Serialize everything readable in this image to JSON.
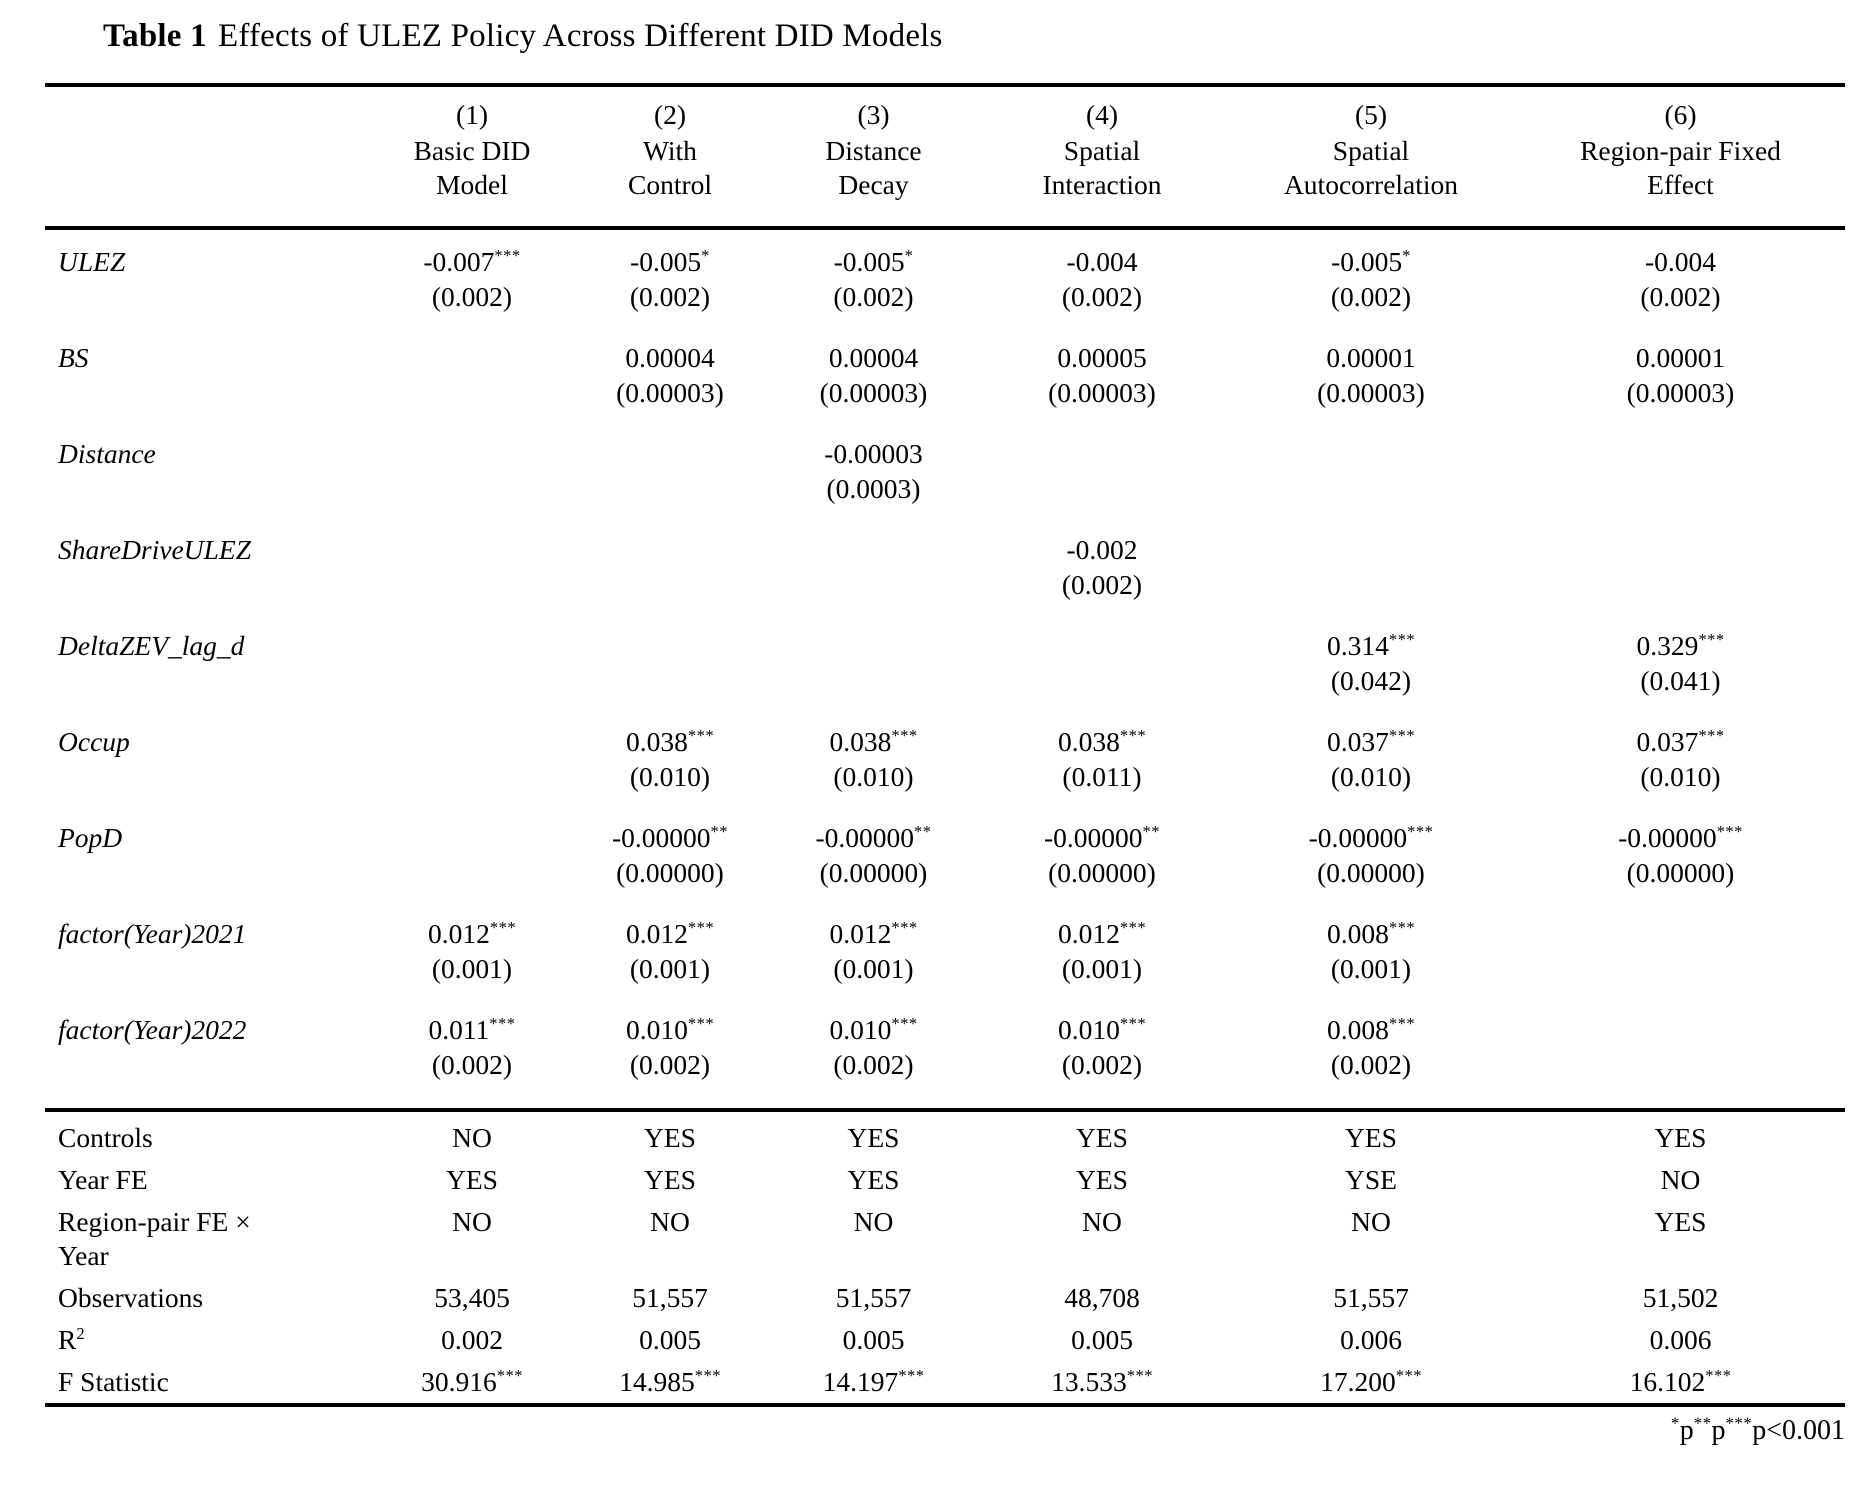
{
  "title": {
    "bold": "Table 1",
    "rest": "Effects of ULEZ Policy Across Different DID Models"
  },
  "columns": [
    {
      "num": "(1)",
      "label": "Basic DID\nModel"
    },
    {
      "num": "(2)",
      "label": "With\nControl"
    },
    {
      "num": "(3)",
      "label": "Distance\nDecay"
    },
    {
      "num": "(4)",
      "label": "Spatial\nInteraction"
    },
    {
      "num": "(5)",
      "label": "Spatial\nAutocorrelation"
    },
    {
      "num": "(6)",
      "label": "Region-pair Fixed\nEffect"
    }
  ],
  "coef_rows": [
    {
      "label": "ULEZ",
      "cells": [
        {
          "est": "-0.007",
          "stars": "***",
          "se": "(0.002)"
        },
        {
          "est": "-0.005",
          "stars": "*",
          "se": "(0.002)"
        },
        {
          "est": "-0.005",
          "stars": "*",
          "se": "(0.002)"
        },
        {
          "est": "-0.004",
          "stars": "",
          "se": "(0.002)"
        },
        {
          "est": "-0.005",
          "stars": "*",
          "se": "(0.002)"
        },
        {
          "est": "-0.004",
          "stars": "",
          "se": "(0.002)"
        }
      ]
    },
    {
      "label": "BS",
      "cells": [
        null,
        {
          "est": "0.00004",
          "stars": "",
          "se": "(0.00003)"
        },
        {
          "est": "0.00004",
          "stars": "",
          "se": "(0.00003)"
        },
        {
          "est": "0.00005",
          "stars": "",
          "se": "(0.00003)"
        },
        {
          "est": "0.00001",
          "stars": "",
          "se": "(0.00003)"
        },
        {
          "est": "0.00001",
          "stars": "",
          "se": "(0.00003)"
        }
      ]
    },
    {
      "label": "Distance",
      "cells": [
        null,
        null,
        {
          "est": "-0.00003",
          "stars": "",
          "se": "(0.0003)"
        },
        null,
        null,
        null
      ]
    },
    {
      "label": "ShareDriveULEZ",
      "cells": [
        null,
        null,
        null,
        {
          "est": "-0.002",
          "stars": "",
          "se": "(0.002)"
        },
        null,
        null
      ]
    },
    {
      "label": "DeltaZEV_lag_d",
      "cells": [
        null,
        null,
        null,
        null,
        {
          "est": "0.314",
          "stars": "***",
          "se": "(0.042)"
        },
        {
          "est": "0.329",
          "stars": "***",
          "se": "(0.041)"
        }
      ]
    },
    {
      "label": "Occup",
      "cells": [
        null,
        {
          "est": "0.038",
          "stars": "***",
          "se": "(0.010)"
        },
        {
          "est": "0.038",
          "stars": "***",
          "se": "(0.010)"
        },
        {
          "est": "0.038",
          "stars": "***",
          "se": "(0.011)"
        },
        {
          "est": "0.037",
          "stars": "***",
          "se": "(0.010)"
        },
        {
          "est": "0.037",
          "stars": "***",
          "se": "(0.010)"
        }
      ]
    },
    {
      "label": "PopD",
      "cells": [
        null,
        {
          "est": "-0.00000",
          "stars": "**",
          "se": "(0.00000)"
        },
        {
          "est": "-0.00000",
          "stars": "**",
          "se": "(0.00000)"
        },
        {
          "est": "-0.00000",
          "stars": "**",
          "se": "(0.00000)"
        },
        {
          "est": "-0.00000",
          "stars": "***",
          "se": "(0.00000)"
        },
        {
          "est": "-0.00000",
          "stars": "***",
          "se": "(0.00000)"
        }
      ]
    },
    {
      "label": "factor(Year)2021",
      "cells": [
        {
          "est": "0.012",
          "stars": "***",
          "se": "(0.001)"
        },
        {
          "est": "0.012",
          "stars": "***",
          "se": "(0.001)"
        },
        {
          "est": "0.012",
          "stars": "***",
          "se": "(0.001)"
        },
        {
          "est": "0.012",
          "stars": "***",
          "se": "(0.001)"
        },
        {
          "est": "0.008",
          "stars": "***",
          "se": "(0.001)"
        },
        null
      ]
    },
    {
      "label": "factor(Year)2022",
      "cells": [
        {
          "est": "0.011",
          "stars": "***",
          "se": "(0.002)"
        },
        {
          "est": "0.010",
          "stars": "***",
          "se": "(0.002)"
        },
        {
          "est": "0.010",
          "stars": "***",
          "se": "(0.002)"
        },
        {
          "est": "0.010",
          "stars": "***",
          "se": "(0.002)"
        },
        {
          "est": "0.008",
          "stars": "***",
          "se": "(0.002)"
        },
        null
      ]
    }
  ],
  "stat_rows": [
    {
      "label": "Controls",
      "values": [
        "NO",
        "YES",
        "YES",
        "YES",
        "YES",
        "YES"
      ]
    },
    {
      "label": "Year FE",
      "values": [
        "YES",
        "YES",
        "YES",
        "YES",
        "YSE",
        "NO"
      ]
    },
    {
      "label": "Region-pair FE ×\nYear",
      "values": [
        "NO",
        "NO",
        "NO",
        "NO",
        "NO",
        "YES"
      ]
    },
    {
      "label": "Observations",
      "values": [
        "53,405",
        "51,557",
        "51,557",
        "48,708",
        "51,557",
        "51,502"
      ]
    },
    {
      "label": "R",
      "label_sup": "2",
      "values": [
        "0.002",
        "0.005",
        "0.005",
        "0.005",
        "0.006",
        "0.006"
      ]
    },
    {
      "label": "F Statistic",
      "values": [
        {
          "text": "30.916",
          "stars": "***"
        },
        {
          "text": "14.985",
          "stars": "***"
        },
        {
          "text": "14.197",
          "stars": "***"
        },
        {
          "text": "13.533",
          "stars": "***"
        },
        {
          "text": "17.200",
          "stars": "***"
        },
        {
          "text": "16.102",
          "stars": "***"
        }
      ]
    }
  ],
  "footnote": {
    "parts": [
      {
        "sup": "*",
        "text": "p"
      },
      {
        "sup": "**",
        "text": "p"
      },
      {
        "sup": "***",
        "text": "p<0.001"
      }
    ]
  }
}
